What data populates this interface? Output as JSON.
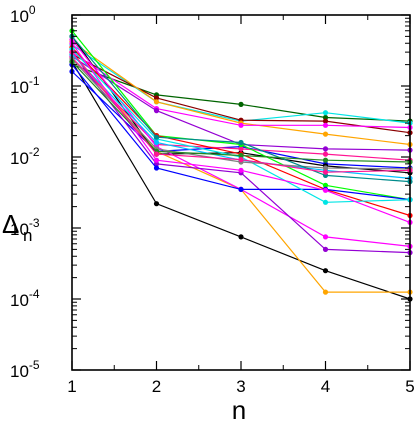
{
  "chart_data": {
    "type": "line",
    "title": "",
    "xlabel": "n",
    "ylabel_main": "Δ",
    "ylabel_sub": "n",
    "x": [
      1,
      2,
      3,
      4,
      5
    ],
    "xlim": [
      1,
      5
    ],
    "ylim": [
      1e-05,
      1
    ],
    "yscale": "log",
    "grid": false,
    "legend": "none",
    "x_ticks": [
      {
        "value": 1,
        "label": "1"
      },
      {
        "value": 2,
        "label": "2"
      },
      {
        "value": 3,
        "label": "3"
      },
      {
        "value": 4,
        "label": "4"
      },
      {
        "value": 5,
        "label": "5"
      }
    ],
    "y_ticks": [
      {
        "value": 1e-05,
        "base": "10",
        "exp": "-5"
      },
      {
        "value": 0.0001,
        "base": "10",
        "exp": "-4"
      },
      {
        "value": 0.001,
        "base": "10",
        "exp": "-3"
      },
      {
        "value": 0.01,
        "base": "10",
        "exp": "-2"
      },
      {
        "value": 0.1,
        "base": "10",
        "exp": "-1"
      },
      {
        "value": 1,
        "base": "10",
        "exp": "0"
      }
    ],
    "series": [
      {
        "color": "#000000",
        "values": [
          0.22,
          0.0022,
          0.00075,
          0.00025,
          0.0001
        ]
      },
      {
        "color": "#ffa500",
        "values": [
          0.3,
          0.012,
          0.0035,
          0.000125,
          0.000125
        ]
      },
      {
        "color": "#006400",
        "values": [
          0.2,
          0.075,
          0.055,
          0.036,
          0.032
        ]
      },
      {
        "color": "#00e5e5",
        "values": [
          0.38,
          0.06,
          0.032,
          0.042,
          0.03
        ]
      },
      {
        "color": "#8b0000",
        "values": [
          0.28,
          0.068,
          0.033,
          0.032,
          0.022
        ]
      },
      {
        "color": "#ffa500",
        "values": [
          0.42,
          0.06,
          0.03,
          0.021,
          0.015
        ]
      },
      {
        "color": "#ff00ff",
        "values": [
          0.3,
          0.048,
          0.028,
          0.028,
          0.026
        ]
      },
      {
        "color": "#9400d3",
        "values": [
          0.26,
          0.045,
          0.015,
          0.013,
          0.0125
        ]
      },
      {
        "color": "#0000ff",
        "values": [
          0.16,
          0.012,
          0.014,
          0.008,
          0.007
        ]
      },
      {
        "color": "#000000",
        "values": [
          0.5,
          0.011,
          0.0115,
          0.0075,
          0.006
        ]
      },
      {
        "color": "#ff1493",
        "values": [
          0.25,
          0.015,
          0.013,
          0.011,
          0.009
        ]
      },
      {
        "color": "#00ff00",
        "values": [
          0.6,
          0.02,
          0.015,
          0.004,
          0.0025
        ]
      },
      {
        "color": "#ff0000",
        "values": [
          0.35,
          0.02,
          0.011,
          0.0035,
          0.0015
        ]
      },
      {
        "color": "#ff00ff",
        "values": [
          0.45,
          0.014,
          0.0035,
          0.00075,
          0.00055
        ]
      },
      {
        "color": "#9400d3",
        "values": [
          0.3,
          0.008,
          0.006,
          0.0005,
          0.00045
        ]
      },
      {
        "color": "#0000ff",
        "values": [
          0.2,
          0.007,
          0.0035,
          0.0035,
          0.0025
        ]
      },
      {
        "color": "#00e5e5",
        "values": [
          0.33,
          0.018,
          0.01,
          0.0023,
          0.0025
        ]
      },
      {
        "color": "#00bfff",
        "values": [
          0.28,
          0.016,
          0.009,
          0.0065,
          0.005
        ]
      },
      {
        "color": "#808080",
        "values": [
          0.24,
          0.013,
          0.0085,
          0.007,
          0.0068
        ]
      },
      {
        "color": "#008b8b",
        "values": [
          0.5,
          0.019,
          0.016,
          0.0055,
          0.0045
        ]
      },
      {
        "color": "#ff00ff",
        "values": [
          0.4,
          0.009,
          0.0065,
          0.0034,
          0.0012
        ]
      },
      {
        "color": "#228b22",
        "values": [
          0.22,
          0.012,
          0.0105,
          0.009,
          0.0085
        ]
      },
      {
        "color": "#ff1493",
        "values": [
          0.3,
          0.011,
          0.0092,
          0.0061,
          0.0065
        ]
      }
    ]
  }
}
